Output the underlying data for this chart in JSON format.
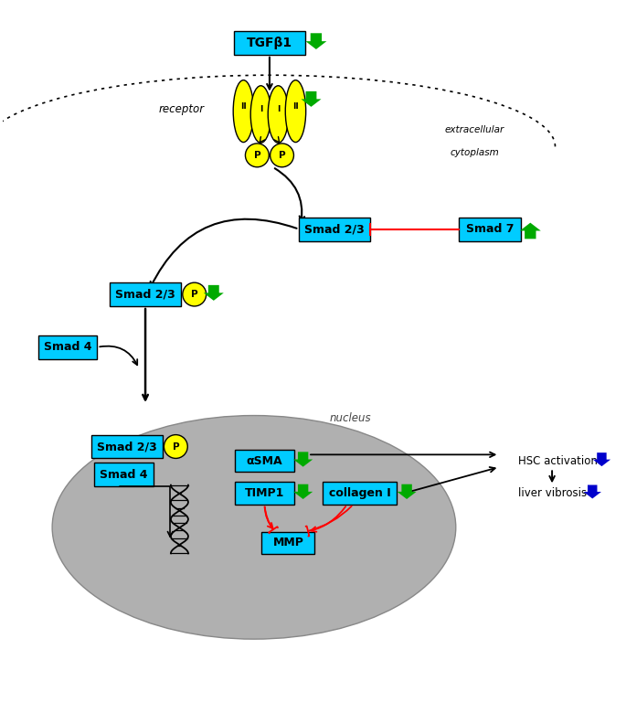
{
  "fig_width": 6.85,
  "fig_height": 7.8,
  "bg_color": "#ffffff",
  "cyan_box_color": "#00ccff",
  "yellow_color": "#ffff00",
  "green_color": "#00aa00",
  "red_color": "#ff0000",
  "black_color": "#000000",
  "blue_color": "#0000cc",
  "nucleus_color": "#b0b0b0",
  "receptor_label": "receptor",
  "extracellular_label": "extracellular",
  "cytoplasm_label": "cytoplasm",
  "nucleus_label": "nucleus"
}
